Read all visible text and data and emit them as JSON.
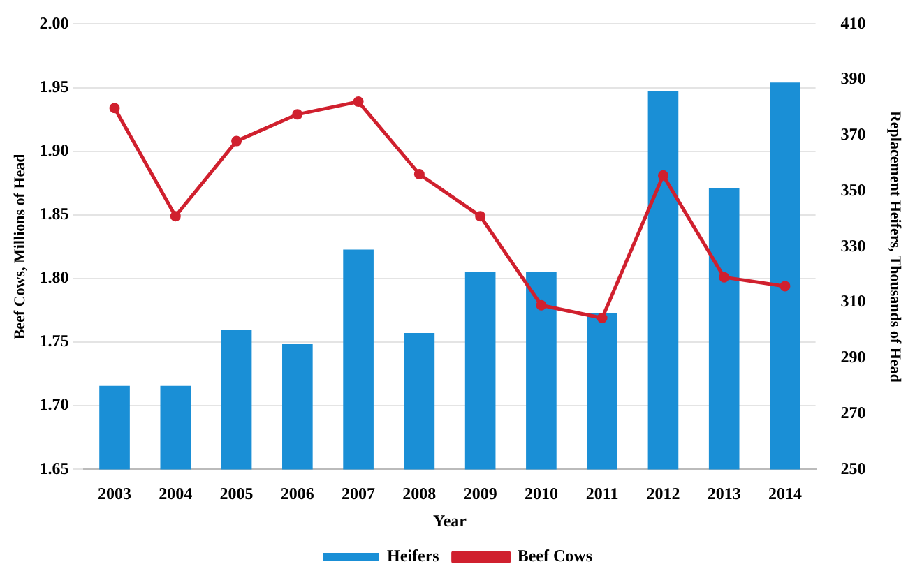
{
  "chart_data": {
    "type": "bar",
    "xlabel": "Year",
    "ylabel": "Beef Cows, Millions of Head",
    "y2label": "Replacement Heifers, Thousands of Head",
    "categories": [
      "2003",
      "2004",
      "2005",
      "2006",
      "2007",
      "2008",
      "2009",
      "2010",
      "2011",
      "2012",
      "2013",
      "2014"
    ],
    "series": [
      {
        "name": "Heifers",
        "axis": "y2",
        "color": "#1a8fd6",
        "values": [
          280,
          280,
          300,
          295,
          329,
          299,
          321,
          321,
          306,
          386,
          351,
          389
        ]
      },
      {
        "name": "Beef Cows",
        "type": "line",
        "axis": "y",
        "color": "#d0202e",
        "marker": "circle",
        "values": [
          1.934,
          1.849,
          1.908,
          1.929,
          1.939,
          1.882,
          1.849,
          1.779,
          1.769,
          1.881,
          1.801,
          1.794
        ]
      }
    ],
    "ylim": [
      1.65,
      2.0
    ],
    "yticks": [
      {
        "value": 1.65,
        "label": "1.65"
      },
      {
        "value": 1.7,
        "label": "1.70"
      },
      {
        "value": 1.75,
        "label": "1.75"
      },
      {
        "value": 1.8,
        "label": "1.80"
      },
      {
        "value": 1.85,
        "label": "1.85"
      },
      {
        "value": 1.9,
        "label": "1.90"
      },
      {
        "value": 1.95,
        "label": "1.95"
      },
      {
        "value": 2.0,
        "label": "2.00"
      }
    ],
    "y2lim": [
      250,
      410
    ],
    "y2ticks": [
      250,
      270,
      290,
      310,
      330,
      350,
      370,
      390,
      410
    ],
    "grid": "y",
    "legend": "bottom"
  }
}
